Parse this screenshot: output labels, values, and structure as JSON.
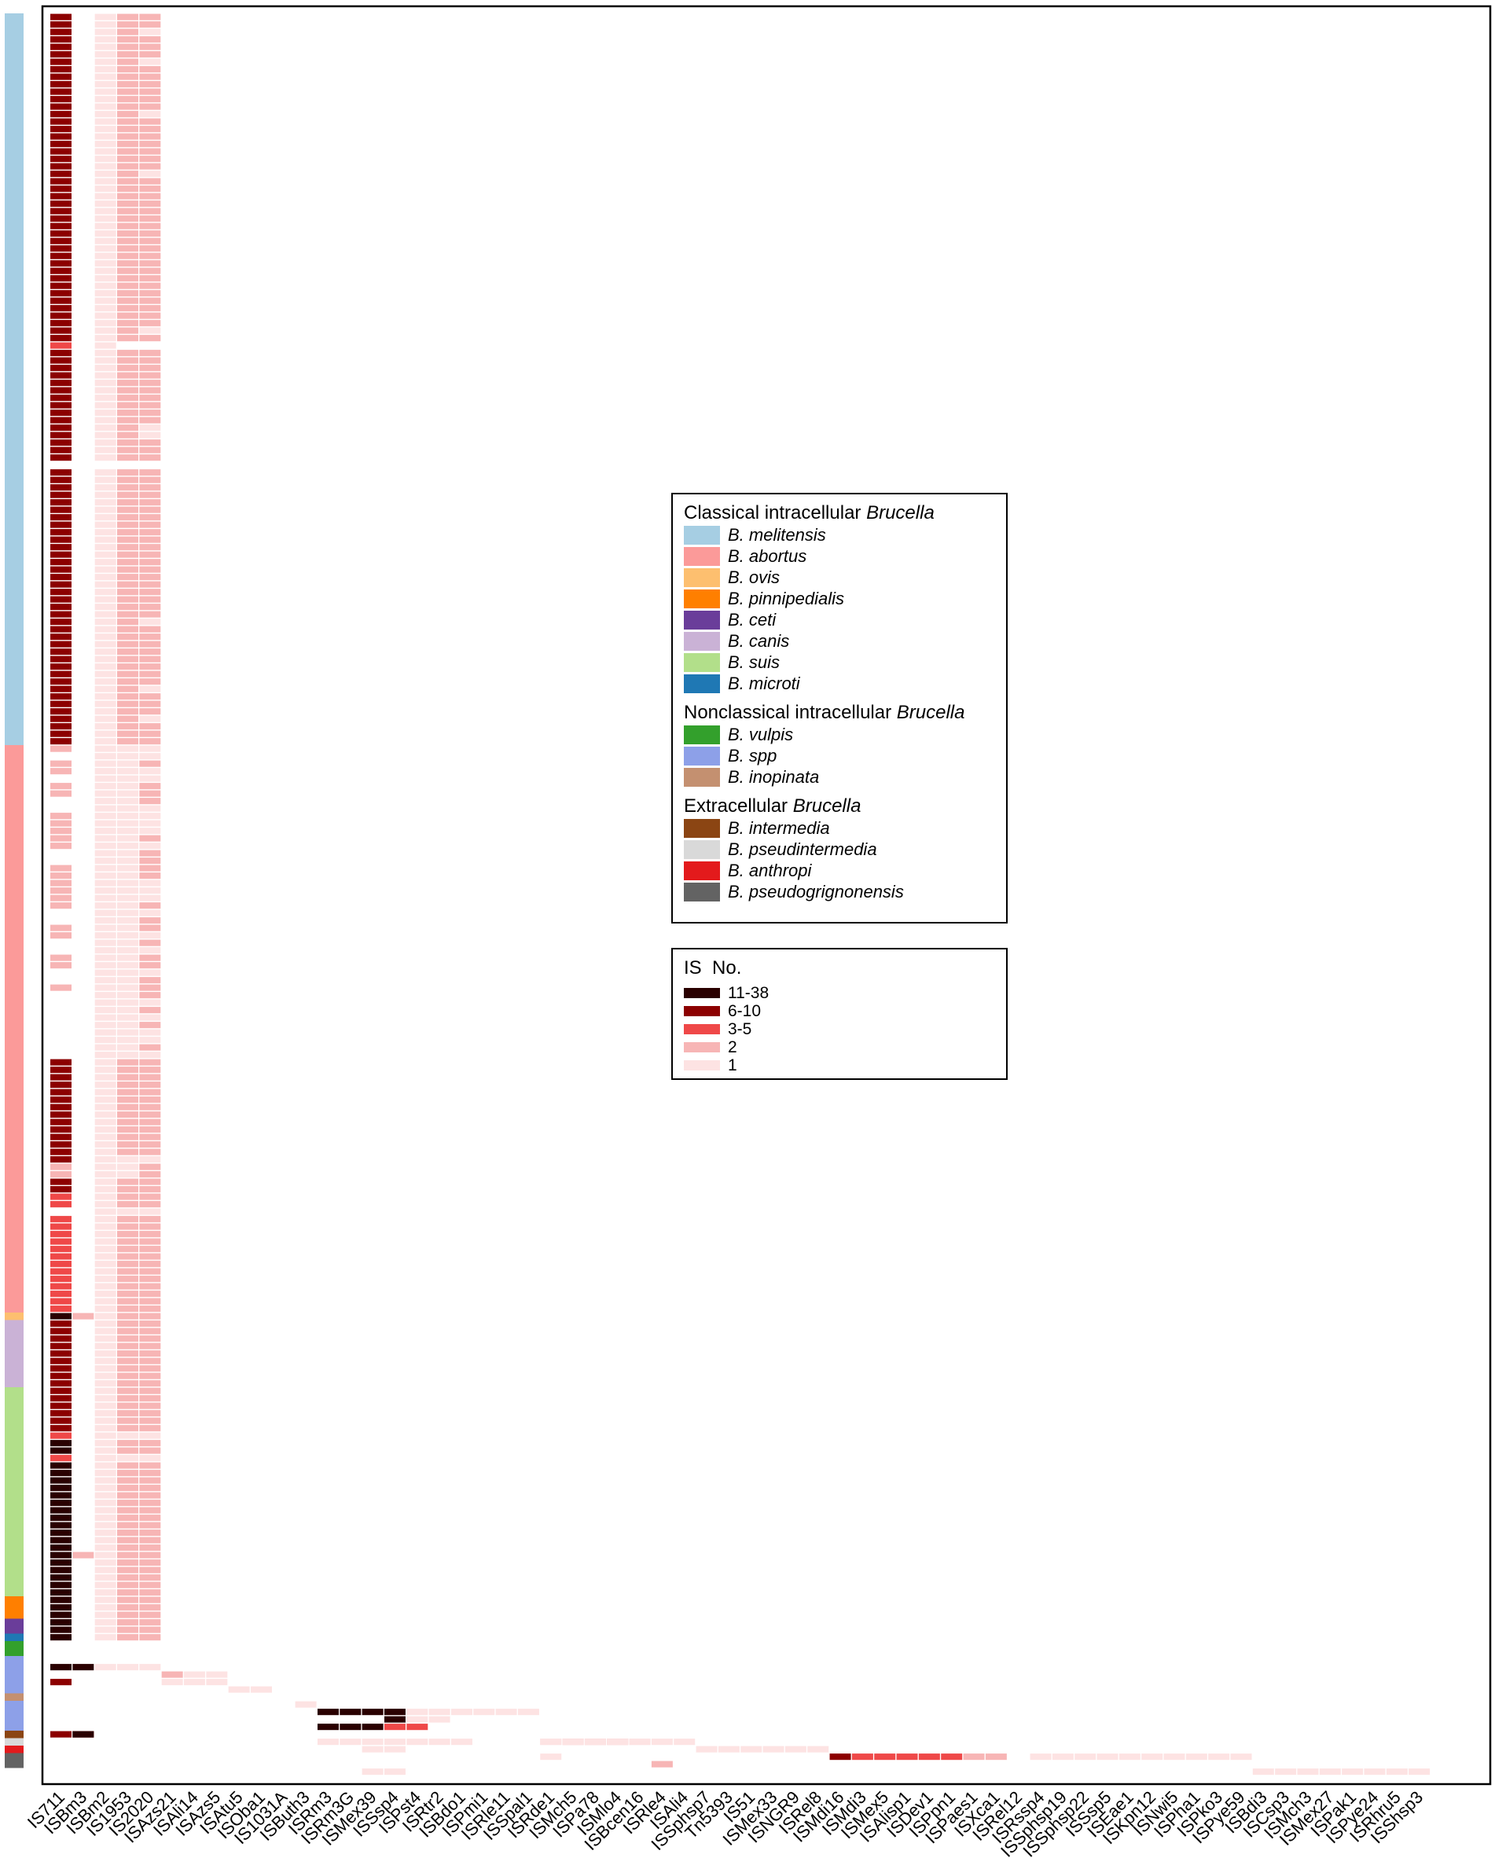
{
  "chart_data": {
    "type": "heatmap",
    "title": "",
    "xlabel": "",
    "ylabel": "",
    "columns": [
      "IS711",
      "ISBm3",
      "ISBm2",
      "IS1953",
      "IS2020",
      "ISAzs21",
      "ISAli14",
      "ISAzs5",
      "ISAtu5",
      "ISOba1",
      "IS1031A",
      "ISButh3",
      "ISRm3",
      "ISRm3G",
      "ISMex39",
      "ISSsp4",
      "ISPst4",
      "ISRtr2",
      "ISBdo1",
      "ISPmi1",
      "ISRle11",
      "ISSpal1",
      "ISRde1",
      "ISMch5",
      "ISPa78",
      "ISMlo4",
      "ISBcen16",
      "ISRle4",
      "ISAli4",
      "ISSphsp7",
      "Tn5393",
      "IS51",
      "ISMex33",
      "ISNGR9",
      "ISRel8",
      "ISMdi16",
      "ISMdi3",
      "ISMex5",
      "ISAlisp1",
      "ISDev1",
      "ISPpn1",
      "ISPaes1",
      "ISXca1",
      "ISRel12",
      "ISRssp4",
      "ISSphsp19",
      "ISSphsp22",
      "ISSsp5",
      "ISEae1",
      "ISKpn12",
      "ISNwi5",
      "ISPha1",
      "ISPko3",
      "ISPye59",
      "ISBdi3",
      "ISCsp3",
      "ISMch3",
      "ISMex27",
      "ISPak1",
      "ISPye24",
      "ISRhru5",
      "ISShsp3"
    ],
    "bins": [
      "1",
      "2",
      "3-5",
      "6-10",
      "11-38"
    ],
    "bin_colors": [
      "#fde3e3",
      "#f7b5b5",
      "#ef4848",
      "#8c0000",
      "#2a0000"
    ],
    "row_groups": [
      {
        "species": "B. melitensis",
        "rows": 98
      },
      {
        "species": "B. abortus",
        "rows": 76
      },
      {
        "species": "B. ovis",
        "rows": 1
      },
      {
        "species": "B. canis",
        "rows": 9
      },
      {
        "species": "B. suis",
        "rows": 28
      },
      {
        "species": "B. pinnipedialis",
        "rows": 3
      },
      {
        "species": "B. ceti",
        "rows": 2
      },
      {
        "species": "B. microti",
        "rows": 1
      },
      {
        "species": "B. vulpis",
        "rows": 2
      },
      {
        "species": "B. spp",
        "rows": 5
      },
      {
        "species": "B. inopinata",
        "rows": 1
      },
      {
        "species": "B. spp",
        "rows": 4
      },
      {
        "species": "B. intermedia",
        "rows": 1
      },
      {
        "species": "B. pseudintermedia",
        "rows": 1
      },
      {
        "species": "B. anthropi",
        "rows": 1
      },
      {
        "species": "B. pseudogrignonensis",
        "rows": 2
      }
    ],
    "classical_profile": "IS711 6-10, ISBm3 absent, ISBm2 1, IS1953 2, IS2020 2 (B. melitensis); IS711 3-5 to 6-10, IS1953/IS2020 1-2 (B. abortus); IS711 11-38 (B. suis)",
    "nonclassical_cells": [
      {
        "row": 221,
        "columns": {
          "IS711": 4,
          "ISBm3": 4,
          "ISBm2": 0,
          "IS1953": 0,
          "IS2020": 0
        }
      },
      {
        "row": 222,
        "columns": {
          "ISAzs21": 1,
          "ISAli14": 0,
          "ISAzs5": 0
        }
      },
      {
        "row": 223,
        "columns": {
          "ISAzs21": 0,
          "ISAli14": 0,
          "ISAzs5": 0,
          "IS711": 3
        }
      },
      {
        "row": 224,
        "columns": {
          "ISAtu5": 0,
          "ISOba1": 0
        }
      },
      {
        "row": 226,
        "columns": {
          "ISButh3": 0
        }
      },
      {
        "row": 227,
        "columns": {
          "ISRm3": 4,
          "ISRm3G": 4,
          "ISMex39": 4,
          "ISSsp4": 4
        }
      },
      {
        "row": 228,
        "columns": {
          "ISSsp4": 4,
          "ISPst4": 0,
          "ISRtr2": 0
        }
      },
      {
        "row": 229,
        "columns": {
          "ISRm3": 4,
          "ISRm3G": 4,
          "ISMex39": 4,
          "ISSsp4": 2,
          "ISPst4": 2
        }
      },
      {
        "row": 231,
        "columns": {
          "ISRde1": 0,
          "ISMch5": 1,
          "ISPa78": 1,
          "ISMlo4": 1,
          "ISBcen16": 0
        }
      },
      {
        "row": 233,
        "columns": {
          "ISMdi16": 3,
          "ISMdi3": 2,
          "ISMex5": 2,
          "ISAlisp1": 2,
          "ISDev1": 2,
          "ISPpn1": 2,
          "ISPaes1": 1,
          "ISXca1": 1
        }
      },
      {
        "row": 234,
        "columns": {
          "ISRle4": 1
        }
      },
      {
        "row": 235,
        "columns": {
          "ISBdi3": 0,
          "ISCsp3": 0,
          "ISMch3": 0,
          "ISMex27": 0,
          "ISPak1": 0,
          "ISPye24": 0,
          "ISRhru5": 0,
          "ISShsp3": 0
        }
      }
    ],
    "legend_species": {
      "groups": [
        {
          "title_prefix": "Classical intracellular ",
          "title_italic": "Brucella",
          "items": [
            {
              "label": "B. melitensis",
              "color": "#a6cee3"
            },
            {
              "label": "B. abortus",
              "color": "#fb9a99"
            },
            {
              "label": "B. ovis",
              "color": "#fdbf6f"
            },
            {
              "label": "B. pinnipedialis",
              "color": "#ff7f00"
            },
            {
              "label": "B. ceti",
              "color": "#6a3d9a"
            },
            {
              "label": "B. canis",
              "color": "#cab2d6"
            },
            {
              "label": "B. suis",
              "color": "#b2df8a"
            },
            {
              "label": "B. microti",
              "color": "#1f78b4"
            }
          ]
        },
        {
          "title_prefix": "Nonclassical intracellular ",
          "title_italic": "Brucella",
          "items": [
            {
              "label": "B. vulpis",
              "color": "#33a02c"
            },
            {
              "label": "B. spp",
              "color": "#8da0e8"
            },
            {
              "label": "B. inopinata",
              "color": "#c49070"
            }
          ]
        },
        {
          "title_prefix": "Extracellular ",
          "title_italic": "Brucella",
          "items": [
            {
              "label": "B. intermedia",
              "color": "#8b4513"
            },
            {
              "label": "B. pseudintermedia",
              "color": "#d9d9d9"
            },
            {
              "label": "B. anthropi",
              "color": "#e31a1c"
            },
            {
              "label": "B. pseudogrignonensis",
              "color": "#636363"
            }
          ]
        }
      ]
    },
    "legend_is": {
      "title": "IS  No.",
      "items": [
        {
          "label": "11-38",
          "color": "#2a0000"
        },
        {
          "label": "6-10",
          "color": "#8c0000"
        },
        {
          "label": "3-5",
          "color": "#ef4848"
        },
        {
          "label": "2",
          "color": "#f7b5b5"
        },
        {
          "label": "1",
          "color": "#fde3e3"
        }
      ]
    }
  }
}
